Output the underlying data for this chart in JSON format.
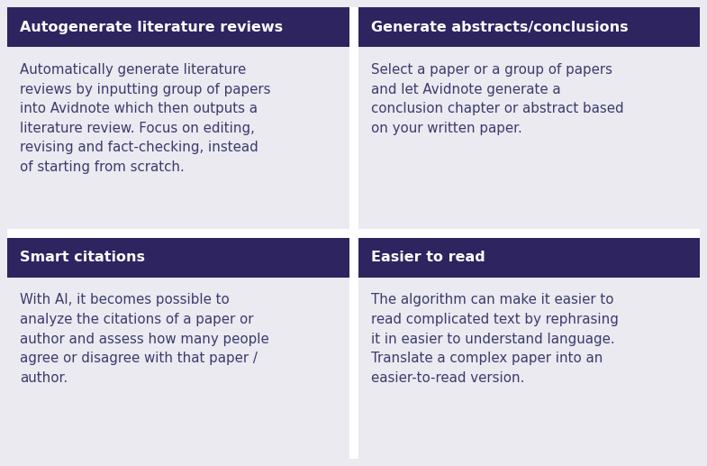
{
  "background_color": "#eaeaf0",
  "header_bg_color": "#2d2460",
  "header_text_color": "#ffffff",
  "body_text_color": "#3d3a6e",
  "divider_color": "#ffffff",
  "quadrants": [
    {
      "header": "Autogenerate literature reviews",
      "body": "Automatically generate literature\nreviews by inputting group of papers\ninto Avidnote which then outputs a\nliterature review. Focus on editing,\nrevising and fact-checking, instead\nof starting from scratch.",
      "col": 0,
      "row": 0
    },
    {
      "header": "Generate abstracts/conclusions",
      "body": "Select a paper or a group of papers\nand let Avidnote generate a\nconclusion chapter or abstract based\non your written paper.",
      "col": 1,
      "row": 0
    },
    {
      "header": "Smart citations",
      "body": "With AI, it becomes possible to\nanalyze the citations of a paper or\nauthor and assess how many people\nagree or disagree with that paper /\nauthor.",
      "col": 0,
      "row": 1
    },
    {
      "header": "Easier to read",
      "body": "The algorithm can make it easier to\nread complicated text by rephrasing\nit in easier to understand language.\nTranslate a complex paper into an\neasier-to-read version.",
      "col": 1,
      "row": 1
    }
  ],
  "header_fontsize": 11.5,
  "body_fontsize": 10.8,
  "figsize": [
    7.85,
    5.17
  ],
  "dpi": 100
}
